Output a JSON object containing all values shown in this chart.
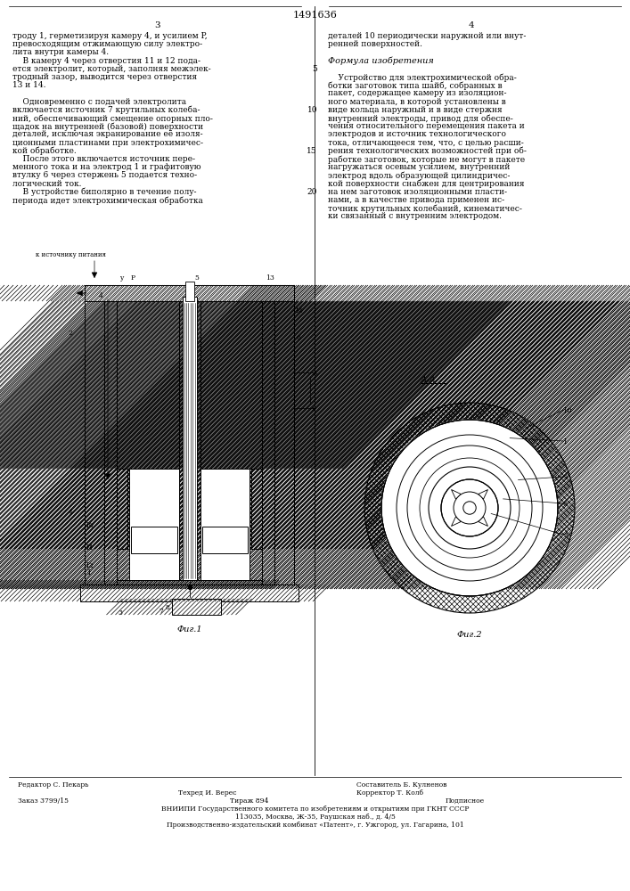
{
  "patent_number": "1491636",
  "page_numbers": [
    "3",
    "4"
  ],
  "background_color": "#ffffff",
  "text_color": "#000000",
  "fig_width": 7.07,
  "fig_height": 10.0,
  "left_column_text": [
    "троду 1, герметизируя камеру 4, и усилием P,",
    "превосходящим отжимающую силу электро-",
    "лита внутри камеры 4.",
    "    В камеру 4 через отверстия 11 и 12 пода-",
    "ется электролит, который, заполняя межэлек-",
    "тродный зазор, выводится через отверстия",
    "13 и 14.",
    "",
    "    Одновременно с подачей электролита",
    "включается источник 7 крутильных колеба-",
    "ний, обеспечивающий смещение опорных пло-",
    "щадок на внутренней (базовой) поверхности",
    "деталей, исключая экранирование её изоля-",
    "ционными пластинами при электрохимичес-",
    "кой обработке.",
    "    После этого включается источник пере-",
    "менного тока и на электрод 1 и графитовую",
    "втулку 6 через стержень 5 подается техно-",
    "логический ток.",
    "    В устройстве биполярно в течение полу-",
    "периода идет электрохимическая обработка"
  ],
  "right_column_text": [
    "деталей 10 периодически наружной или внут-",
    "ренней поверхностей.",
    "",
    "Формула изобретения",
    "",
    "    Устройство для электрохимической обра-",
    "ботки заготовок типа шайб, собранных в",
    "пакет, содержащее камеру из изоляцион-",
    "ного материала, в которой установлены в",
    "виде кольца наружный и в виде стержня",
    "внутренний электроды, привод для обеспе-",
    "чения относительного перемещения пакета и",
    "электродов и источник технологического",
    "тока, отличающееся тем, что, с целью расши-",
    "рения технологических возможностей при об-",
    "работке заготовок, которые не могут в пакете",
    "нагружаться осевым усилием, внутренний",
    "электрод вдоль образующей цилиндричес-",
    "кой поверхности снабжен для центрирования",
    "на нем заготовок изоляционными пласти-",
    "нами, а в качестве привода применен ис-",
    "точник крутильных колебаний, кинематичес-",
    "ки связанный с внутренним электродом."
  ],
  "line_numbers": [
    "5",
    "10",
    "15",
    "20"
  ],
  "line_number_rows": [
    4,
    9,
    14,
    19
  ],
  "bottom_text": [
    [
      "left",
      20,
      "Редактор С. Пекарь"
    ],
    [
      "right",
      400,
      "Составитель Б. Кулненов"
    ],
    [
      "left",
      200,
      "Техред И. Верес"
    ],
    [
      "right",
      400,
      "Корректор Т. Колб"
    ],
    [
      "left",
      20,
      "Заказ 3799/15"
    ],
    [
      "center",
      353,
      "Тираж 894"
    ],
    [
      "right",
      590,
      "Подписное"
    ],
    [
      "center",
      353,
      "ВНИИПИ Государственного комитета по изобретениям и открытиям при ГКНТ СССР"
    ],
    [
      "center",
      353,
      "113035, Москва, Ж-35, Раушская наб., д. 4/5"
    ],
    [
      "center",
      353,
      "Производственно-издательский комбинат «Патент», г. Ужгород, ул. Гагарина, 101"
    ]
  ]
}
